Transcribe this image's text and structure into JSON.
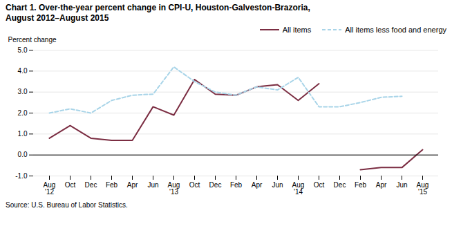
{
  "chart_data": {
    "type": "line",
    "title": "Chart 1. Over-the-year percent change in CPI-U, Houston-Galveston-Brazoria,",
    "subtitle": "August  2012–August  2015",
    "y_label": "Percent change",
    "caption": "Source: U.S. Bureau of Labor Statistics.",
    "categories": [
      "Aug\n'12",
      "Oct",
      "Dec",
      "Feb",
      "Apr",
      "Jun",
      "Aug\n'13",
      "Oct",
      "Dec",
      "Feb",
      "Apr",
      "Jun",
      "Aug\n'14",
      "Oct",
      "Dec",
      "Feb",
      "Apr",
      "Jun",
      "Aug\n'15"
    ],
    "series": [
      {
        "name": "All items",
        "color": "#7B2D42",
        "line_style": "solid",
        "values": [
          0.8,
          1.4,
          0.8,
          0.7,
          0.7,
          2.3,
          1.9,
          3.6,
          2.9,
          2.85,
          3.25,
          3.35,
          2.6,
          3.4,
          null,
          -0.7,
          -0.6,
          -0.6,
          0.25
        ]
      },
      {
        "name": "All items less food and energy",
        "color": "#A8D4E8",
        "line_style": "dashed",
        "values": [
          2.0,
          2.2,
          2.0,
          2.6,
          2.85,
          2.9,
          4.2,
          3.5,
          3.0,
          2.85,
          3.25,
          3.1,
          3.7,
          2.3,
          2.3,
          2.5,
          2.75,
          2.8,
          null
        ]
      }
    ],
    "ylim": [
      -1.0,
      5.0
    ],
    "yticks": [
      {
        "value": -1.0,
        "label": "-1.0"
      },
      {
        "value": 0.0,
        "label": "0.0"
      },
      {
        "value": 1.0,
        "label": "1.0"
      },
      {
        "value": 2.0,
        "label": "2.0"
      },
      {
        "value": 3.0,
        "label": "3.0"
      },
      {
        "value": 4.0,
        "label": "4.0"
      },
      {
        "value": 5.0,
        "label": "5.0"
      }
    ],
    "grid": true,
    "legend": "upper right"
  }
}
